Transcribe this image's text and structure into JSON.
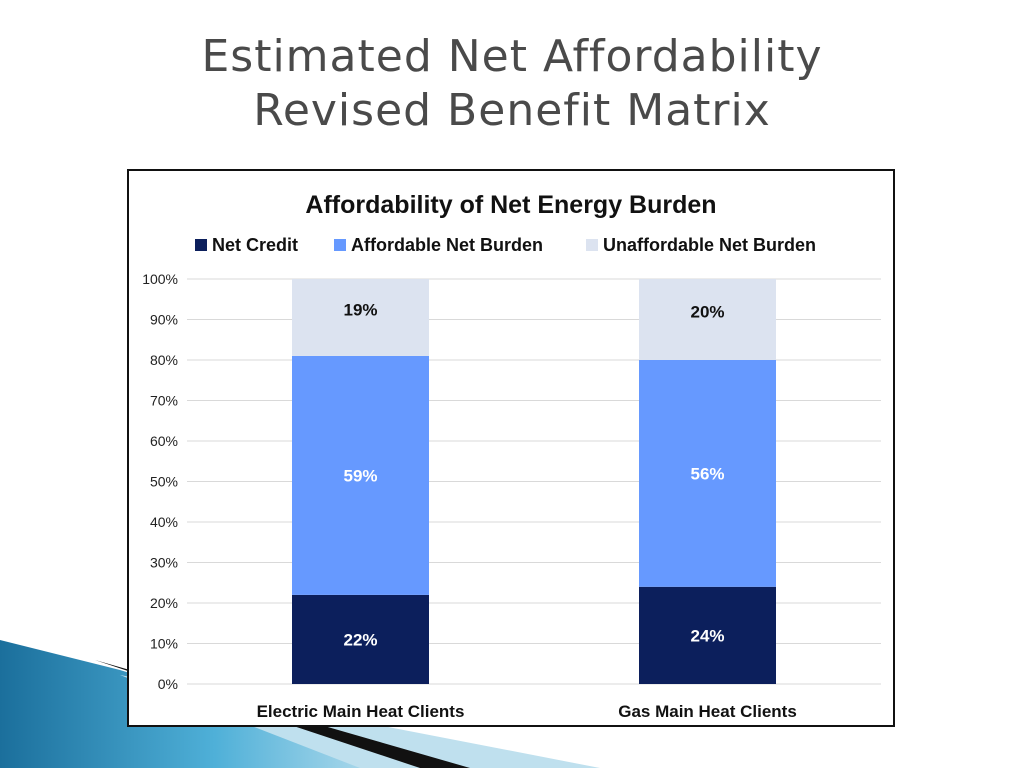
{
  "slide": {
    "title_line1": "Estimated Net Affordability",
    "title_line2": "Revised Benefit Matrix"
  },
  "colors": {
    "net_credit": "#0c1f5c",
    "affordable": "#6699ff",
    "unaffordable": "#dce3f0",
    "label_dark": "#111111",
    "label_light": "#ffffff",
    "grid": "#d9d9d9",
    "decor_teal": "#2f8fb8"
  },
  "chart_data": {
    "type": "bar",
    "stacked": true,
    "title": "Affordability of Net Energy Burden",
    "categories": [
      "Electric Main Heat Clients",
      "Gas Main Heat Clients"
    ],
    "series": [
      {
        "name": "Net Credit",
        "values": [
          22,
          24
        ],
        "labels": [
          "22%",
          "24%"
        ]
      },
      {
        "name": "Affordable Net Burden",
        "values": [
          59,
          56
        ],
        "labels": [
          "59%",
          "56%"
        ]
      },
      {
        "name": "Unaffordable Net Burden",
        "values": [
          19,
          20
        ],
        "labels": [
          "19%",
          "20%"
        ]
      }
    ],
    "ylim": [
      0,
      100
    ],
    "yticks": [
      "0%",
      "10%",
      "20%",
      "30%",
      "40%",
      "50%",
      "60%",
      "70%",
      "80%",
      "90%",
      "100%"
    ],
    "grid": true,
    "legend_position": "top"
  }
}
